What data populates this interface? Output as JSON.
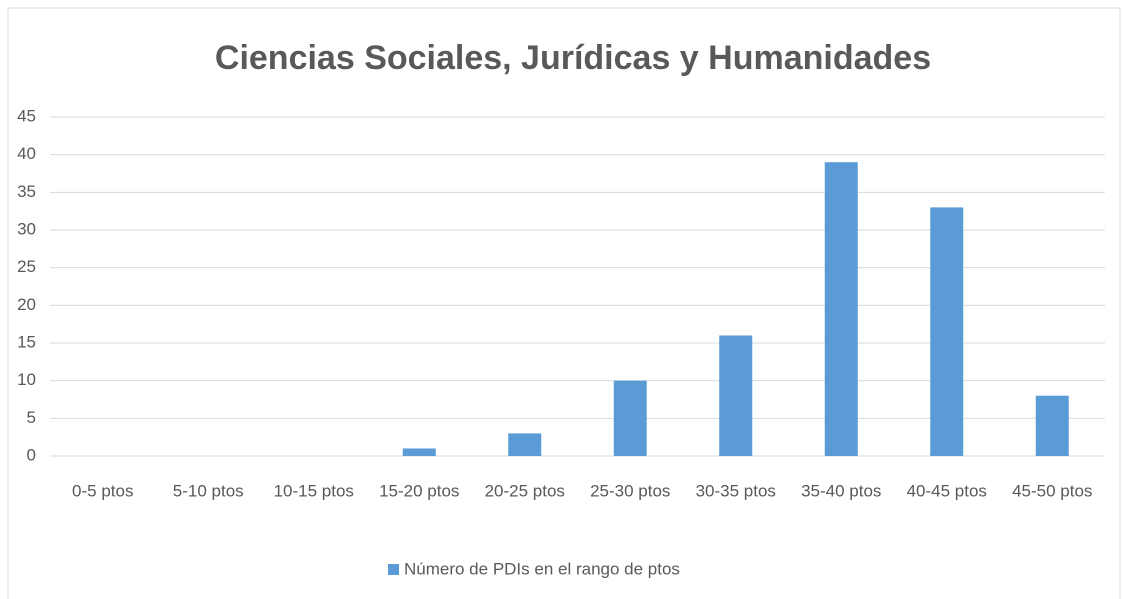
{
  "chart_data": {
    "type": "bar",
    "title": "Ciencias Sociales, Jurídicas y Humanidades",
    "categories": [
      "0-5 ptos",
      "5-10 ptos",
      "10-15 ptos",
      "15-20 ptos",
      "20-25 ptos",
      "25-30 ptos",
      "30-35 ptos",
      "35-40 ptos",
      "40-45 ptos",
      "45-50 ptos"
    ],
    "series": [
      {
        "name": "Número de PDIs en el rango de ptos",
        "color": "#5b9bd5",
        "values": [
          0,
          0,
          0,
          1,
          3,
          10,
          16,
          39,
          33,
          8
        ]
      }
    ],
    "ylim": [
      0,
      45
    ],
    "yticks": [
      0,
      5,
      10,
      15,
      20,
      25,
      30,
      35,
      40,
      45
    ],
    "grid": true,
    "legend": "bottom"
  }
}
